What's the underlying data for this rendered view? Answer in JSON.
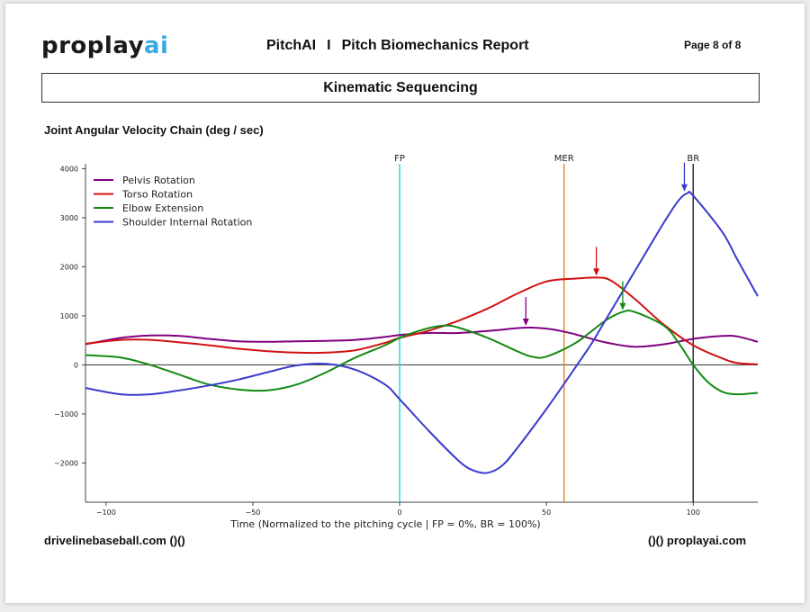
{
  "header": {
    "logo_main": "proplay",
    "logo_accent": "ai",
    "report_app": "PitchAI",
    "separator": "I",
    "report_title": "Pitch Biomechanics Report",
    "page_indicator": "Page 8 of 8"
  },
  "section_title": "Kinematic Sequencing",
  "chart_heading": "Joint Angular Velocity Chain (deg / sec)",
  "footer": {
    "left": "drivelinebaseball.com ()()",
    "right": "()() proplayai.com"
  },
  "chart_data": {
    "type": "line",
    "title": "",
    "xlabel": "Time (Normalized to the pitching cycle | FP = 0%, BR = 100%)",
    "ylabel": "",
    "xlim": [
      -107,
      122
    ],
    "ylim": [
      -2800,
      4100
    ],
    "x_ticks": [
      -100,
      -50,
      0,
      50,
      100
    ],
    "y_ticks": [
      -2000,
      -1000,
      0,
      1000,
      2000,
      3000,
      4000
    ],
    "grid": false,
    "legend_position": "top-left",
    "zero_line": true,
    "series": [
      {
        "name": "Pelvis Rotation",
        "color": "#800080",
        "x": [
          -107,
          -95,
          -85,
          -75,
          -65,
          -55,
          -45,
          -35,
          -25,
          -15,
          -5,
          0,
          10,
          20,
          30,
          40,
          45,
          50,
          55,
          60,
          70,
          80,
          90,
          100,
          110,
          115,
          122
        ],
        "y": [
          420,
          550,
          600,
          590,
          530,
          480,
          470,
          480,
          490,
          510,
          570,
          610,
          650,
          650,
          690,
          750,
          760,
          740,
          690,
          620,
          460,
          370,
          420,
          530,
          590,
          580,
          470
        ]
      },
      {
        "name": "Torso Rotation",
        "color": "#d01010",
        "x": [
          -107,
          -95,
          -85,
          -75,
          -65,
          -55,
          -45,
          -35,
          -25,
          -15,
          -5,
          0,
          10,
          20,
          30,
          40,
          50,
          60,
          67,
          72,
          80,
          90,
          100,
          110,
          115,
          122
        ],
        "y": [
          430,
          510,
          510,
          460,
          400,
          330,
          280,
          250,
          250,
          300,
          450,
          550,
          700,
          900,
          1150,
          1450,
          1700,
          1760,
          1780,
          1720,
          1350,
          820,
          400,
          130,
          40,
          10
        ]
      },
      {
        "name": "Elbow Extension",
        "color": "#138a13",
        "x": [
          -107,
          -95,
          -85,
          -75,
          -65,
          -55,
          -45,
          -35,
          -25,
          -15,
          -5,
          0,
          8,
          15,
          20,
          30,
          40,
          45,
          50,
          60,
          70,
          76,
          80,
          90,
          95,
          100,
          105,
          110,
          115,
          122
        ],
        "y": [
          200,
          150,
          0,
          -200,
          -400,
          -500,
          -520,
          -400,
          -150,
          150,
          400,
          550,
          720,
          800,
          760,
          550,
          280,
          170,
          170,
          450,
          900,
          1080,
          1080,
          800,
          450,
          0,
          -350,
          -550,
          -600,
          -570
        ]
      },
      {
        "name": "Shoulder Internal Rotation",
        "color": "#3a3acd",
        "x": [
          -107,
          -95,
          -85,
          -75,
          -65,
          -55,
          -45,
          -35,
          -25,
          -15,
          -5,
          0,
          10,
          20,
          25,
          30,
          35,
          40,
          50,
          57,
          65,
          70,
          80,
          90,
          95,
          98,
          100,
          110,
          115,
          122
        ],
        "y": [
          -470,
          -600,
          -600,
          -520,
          -420,
          -300,
          -150,
          -10,
          20,
          -100,
          -400,
          -700,
          -1350,
          -1950,
          -2150,
          -2200,
          -2050,
          -1700,
          -900,
          -300,
          400,
          900,
          1900,
          2900,
          3350,
          3500,
          3450,
          2700,
          2150,
          1400
        ]
      }
    ],
    "event_lines": [
      {
        "label": "FP",
        "x": 0,
        "color": "#29d6e8"
      },
      {
        "label": "MER",
        "x": 56,
        "color": "#e8892a"
      },
      {
        "label": "BR",
        "x": 100,
        "color": "#333333"
      }
    ],
    "peak_markers": [
      {
        "series": "Pelvis Rotation",
        "x": 43,
        "y": 760,
        "color": "#800080"
      },
      {
        "series": "Torso Rotation",
        "x": 67,
        "y": 1780,
        "color": "#d01010"
      },
      {
        "series": "Elbow Extension",
        "x": 76,
        "y": 1080,
        "color": "#138a13"
      },
      {
        "series": "Shoulder Internal Rotation",
        "x": 97,
        "y": 3500,
        "color": "#3a3acd"
      }
    ]
  }
}
